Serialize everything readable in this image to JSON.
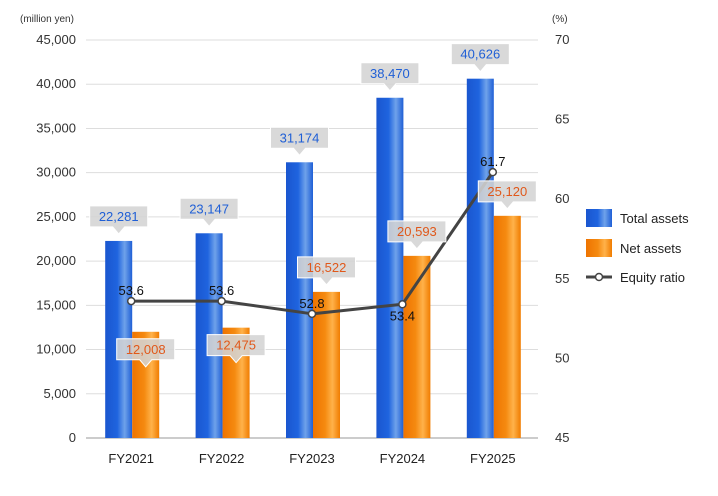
{
  "chart_data": {
    "type": "bar",
    "categories": [
      "FY2021",
      "FY2022",
      "FY2023",
      "FY2024",
      "FY2025"
    ],
    "y_left": {
      "unit_label": "(million yen)",
      "min": 0,
      "max": 45000,
      "step": 5000
    },
    "y_right": {
      "unit_label": "(%)",
      "min": 45,
      "max": 70,
      "step": 5
    },
    "grid": true,
    "legend_position": "right",
    "series": [
      {
        "name": "Total assets",
        "type": "bar",
        "axis": "left",
        "values": [
          22281,
          23147,
          31174,
          38470,
          40626
        ],
        "color": "#1f5fd6",
        "label_color": "#1f5fd6"
      },
      {
        "name": "Net assets",
        "type": "bar",
        "axis": "left",
        "values": [
          12008,
          12475,
          16522,
          20593,
          25120
        ],
        "color": "#f07c00",
        "label_color": "#e0581a"
      },
      {
        "name": "Equity ratio",
        "type": "line",
        "axis": "right",
        "values": [
          53.6,
          53.6,
          52.8,
          53.4,
          61.7
        ],
        "color": "#444444"
      }
    ],
    "data_labels": {
      "Total assets": [
        "22,281",
        "23,147",
        "31,174",
        "38,470",
        "40,626"
      ],
      "Net assets": [
        "12,008",
        "12,475",
        "16,522",
        "20,593",
        "25,120"
      ],
      "Equity ratio": [
        "53.6",
        "53.6",
        "52.8",
        "53.4",
        "61.7"
      ]
    },
    "y_left_ticks": [
      "0",
      "5,000",
      "10,000",
      "15,000",
      "20,000",
      "25,000",
      "30,000",
      "35,000",
      "40,000",
      "45,000"
    ],
    "y_right_ticks": [
      "45",
      "50",
      "55",
      "60",
      "65",
      "70"
    ]
  }
}
